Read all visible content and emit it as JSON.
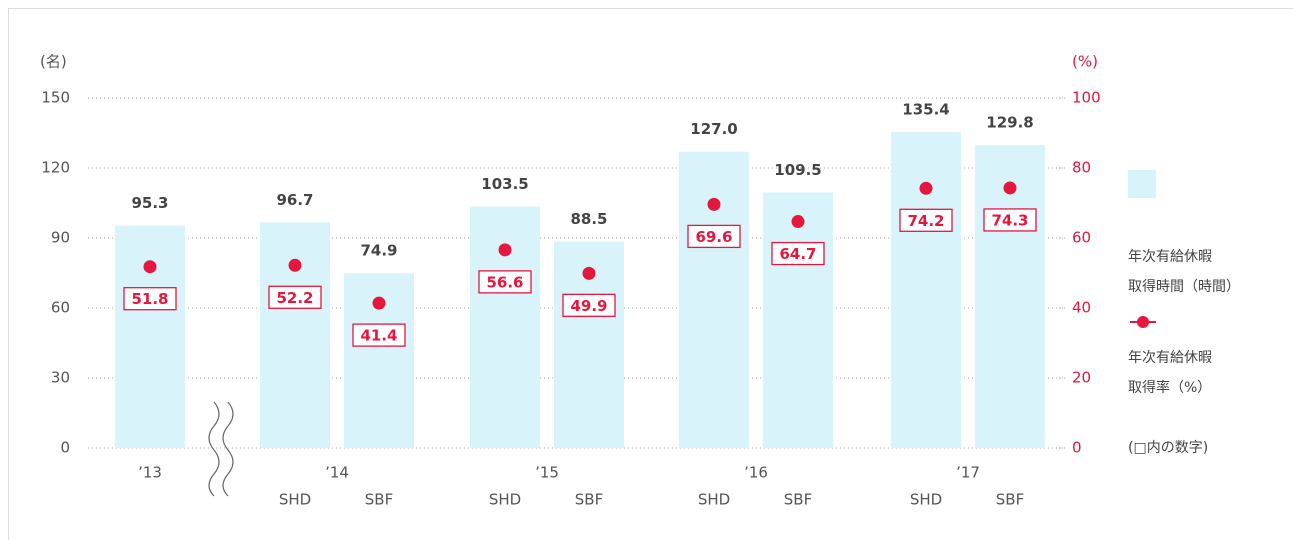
{
  "chart_data": {
    "type": "bar+dot",
    "y_unit": "(名)",
    "y2_unit": "(%)",
    "groups": [
      {
        "label": "’13",
        "categories": [
          null
        ]
      },
      {
        "label": "’14",
        "categories": [
          "SHD",
          "SBF"
        ]
      },
      {
        "label": "’15",
        "categories": [
          "SHD",
          "SBF"
        ]
      },
      {
        "label": "’16",
        "categories": [
          "SHD",
          "SBF"
        ]
      },
      {
        "label": "’17",
        "categories": [
          "SHD",
          "SBF"
        ]
      }
    ],
    "series": [
      {
        "name": "年次有給休暇\n取得時間（時間）",
        "type": "bar",
        "color": "#d9f3fb",
        "values": [
          95.3,
          96.7,
          74.9,
          103.5,
          88.5,
          127.0,
          109.5,
          135.4,
          129.8
        ],
        "value_labels": [
          "95.3",
          "96.7",
          "74.9",
          "103.5",
          "88.5",
          "127.0",
          "109.5",
          "135.4",
          "129.8"
        ]
      },
      {
        "name": "年次有給休暇\n取得率（%）",
        "type": "dot",
        "axis": "y2",
        "color": "#e5173f",
        "note": "(□内の数字)",
        "values": [
          51.8,
          52.2,
          41.4,
          56.6,
          49.9,
          69.6,
          64.7,
          74.2,
          74.3
        ]
      }
    ],
    "ylim": [
      0,
      150
    ],
    "yticks": [
      0,
      30,
      60,
      90,
      120,
      150
    ],
    "y2lim": [
      0,
      100
    ],
    "y2ticks": [
      0,
      20,
      40,
      60,
      80,
      100
    ],
    "grid": true
  }
}
